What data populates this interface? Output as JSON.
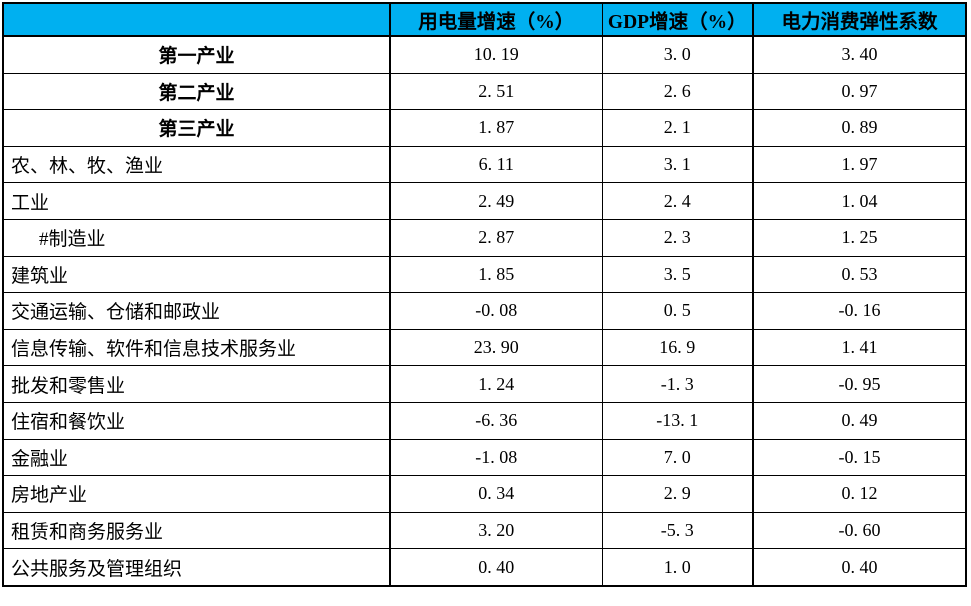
{
  "page": {
    "background_color": "#ffffff",
    "header_bg_color": "#00b0f0",
    "border_color": "#000000",
    "text_color": "#000000"
  },
  "table": {
    "header": {
      "columns": [
        {
          "label": ""
        },
        {
          "label": "用电量增速（%）"
        },
        {
          "label": "GDP增速（%）"
        },
        {
          "label": "电力消费弹性系数"
        }
      ]
    },
    "rows": [
      {
        "label": "第一产业",
        "values": [
          "10.19",
          "3.0",
          "3.40"
        ],
        "emphasis": true,
        "indent": false
      },
      {
        "label": "第二产业",
        "values": [
          "2.51",
          "2.6",
          "0.97"
        ],
        "emphasis": true,
        "indent": false
      },
      {
        "label": "第三产业",
        "values": [
          "1.87",
          "2.1",
          "0.89"
        ],
        "emphasis": true,
        "indent": false
      },
      {
        "label": "农、林、牧、渔业",
        "values": [
          "6.11",
          "3.1",
          "1.97"
        ],
        "emphasis": false,
        "indent": false
      },
      {
        "label": "工业",
        "values": [
          "2.49",
          "2.4",
          "1.04"
        ],
        "emphasis": false,
        "indent": false
      },
      {
        "label": "#制造业",
        "values": [
          "2.87",
          "2.3",
          "1.25"
        ],
        "emphasis": false,
        "indent": true
      },
      {
        "label": "建筑业",
        "values": [
          "1.85",
          "3.5",
          "0.53"
        ],
        "emphasis": false,
        "indent": false
      },
      {
        "label": "交通运输、仓储和邮政业",
        "values": [
          "-0.08",
          "0.5",
          "-0.16"
        ],
        "emphasis": false,
        "indent": false
      },
      {
        "label": "信息传输、软件和信息技术服务业",
        "values": [
          "23.90",
          "16.9",
          "1.41"
        ],
        "emphasis": false,
        "indent": false
      },
      {
        "label": "批发和零售业",
        "values": [
          "1.24",
          "-1.3",
          "-0.95"
        ],
        "emphasis": false,
        "indent": false
      },
      {
        "label": "住宿和餐饮业",
        "values": [
          "-6.36",
          "-13.1",
          "0.49"
        ],
        "emphasis": false,
        "indent": false
      },
      {
        "label": "金融业",
        "values": [
          "-1.08",
          "7.0",
          "-0.15"
        ],
        "emphasis": false,
        "indent": false
      },
      {
        "label": "房地产业",
        "values": [
          "0.34",
          "2.9",
          "0.12"
        ],
        "emphasis": false,
        "indent": false
      },
      {
        "label": "租赁和商务服务业",
        "values": [
          "3.20",
          "-5.3",
          "-0.60"
        ],
        "emphasis": false,
        "indent": false
      },
      {
        "label": "公共服务及管理组织",
        "values": [
          "0.40",
          "1.0",
          "0.40"
        ],
        "emphasis": false,
        "indent": false
      }
    ]
  },
  "chart_data": {
    "type": "table",
    "title": "",
    "columns": [
      "",
      "用电量增速（%）",
      "GDP增速（%）",
      "电力消费弹性系数"
    ],
    "rows": [
      [
        "第一产业",
        10.19,
        3.0,
        3.4
      ],
      [
        "第二产业",
        2.51,
        2.6,
        0.97
      ],
      [
        "第三产业",
        1.87,
        2.1,
        0.89
      ],
      [
        "农、林、牧、渔业",
        6.11,
        3.1,
        1.97
      ],
      [
        "工业",
        2.49,
        2.4,
        1.04
      ],
      [
        "#制造业",
        2.87,
        2.3,
        1.25
      ],
      [
        "建筑业",
        1.85,
        3.5,
        0.53
      ],
      [
        "交通运输、仓储和邮政业",
        -0.08,
        0.5,
        -0.16
      ],
      [
        "信息传输、软件和信息技术服务业",
        23.9,
        16.9,
        1.41
      ],
      [
        "批发和零售业",
        1.24,
        -1.3,
        -0.95
      ],
      [
        "住宿和餐饮业",
        -6.36,
        -13.1,
        0.49
      ],
      [
        "金融业",
        -1.08,
        7.0,
        -0.15
      ],
      [
        "房地产业",
        0.34,
        2.9,
        0.12
      ],
      [
        "租赁和商务服务业",
        3.2,
        -5.3,
        -0.6
      ],
      [
        "公共服务及管理组织",
        0.4,
        1.0,
        0.4
      ]
    ],
    "layout": {
      "header_bg": "#00b0f0",
      "grid": true,
      "header_row": true
    }
  }
}
